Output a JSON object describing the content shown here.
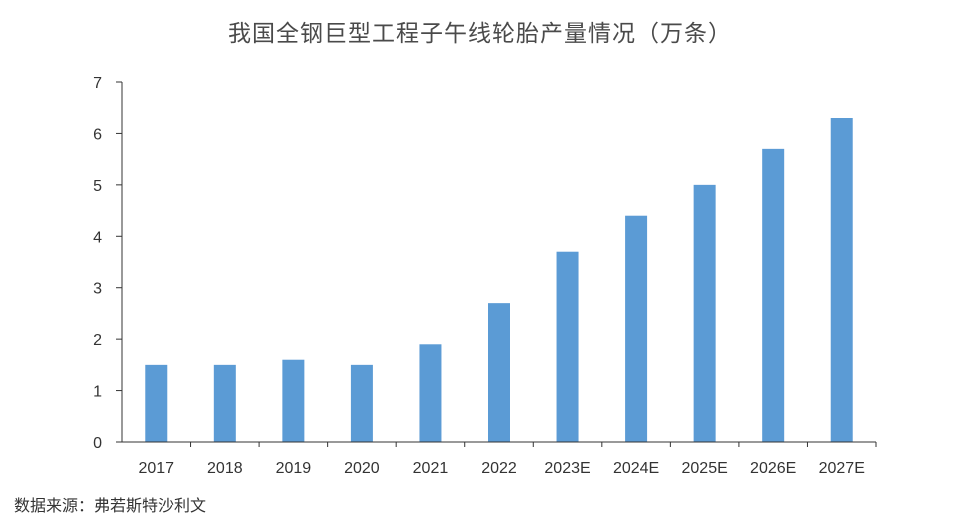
{
  "chart_data": {
    "type": "bar",
    "title": "我国全钢巨型工程子午线轮胎产量情况（万条）",
    "categories": [
      "2017",
      "2018",
      "2019",
      "2020",
      "2021",
      "2022",
      "2023E",
      "2024E",
      "2025E",
      "2026E",
      "2027E"
    ],
    "values": [
      1.5,
      1.5,
      1.6,
      1.5,
      1.9,
      2.7,
      3.7,
      4.4,
      5.0,
      5.7,
      6.3
    ],
    "ylim": [
      0,
      7
    ],
    "yticks": [
      "0",
      "1",
      "2",
      "3",
      "4",
      "5",
      "6",
      "7"
    ],
    "xlabel": "",
    "ylabel": "",
    "grid": false,
    "bar_color": "#5b9bd5",
    "axis_color": "#333333"
  },
  "source": "数据来源：弗若斯特沙利文"
}
